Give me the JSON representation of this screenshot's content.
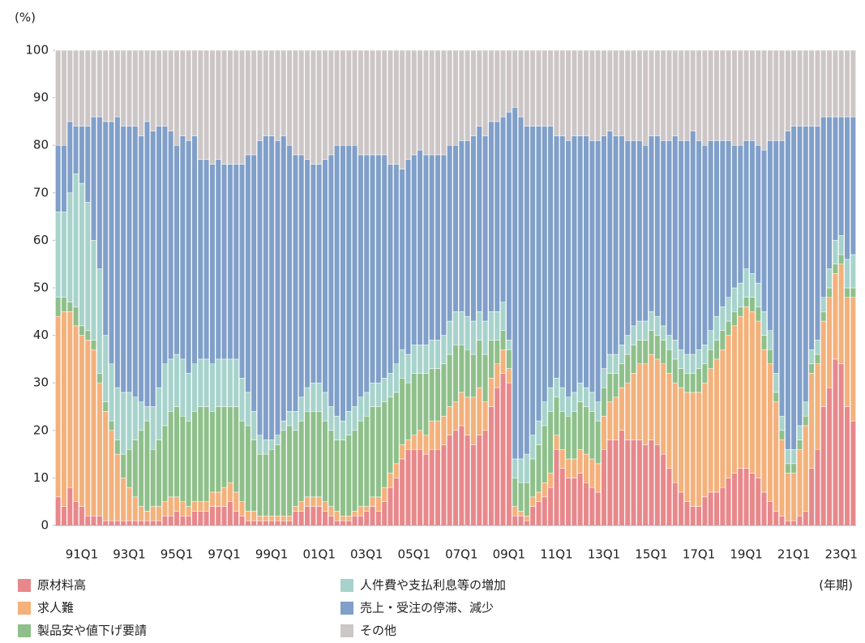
{
  "chart_data": {
    "type": "stacked_bar",
    "y_label": "(%)",
    "x_label": "(年期)",
    "categories": [
      null,
      null,
      null,
      null,
      "91Q1",
      null,
      null,
      null,
      null,
      null,
      null,
      null,
      "93Q1",
      null,
      null,
      null,
      null,
      null,
      null,
      null,
      "95Q1",
      null,
      null,
      null,
      null,
      null,
      null,
      null,
      "97Q1",
      null,
      null,
      null,
      null,
      null,
      null,
      null,
      "99Q1",
      null,
      null,
      null,
      null,
      null,
      null,
      null,
      "01Q1",
      null,
      null,
      null,
      null,
      null,
      null,
      null,
      "03Q1",
      null,
      null,
      null,
      null,
      null,
      null,
      null,
      "05Q1",
      null,
      null,
      null,
      null,
      null,
      null,
      null,
      "07Q1",
      null,
      null,
      null,
      null,
      null,
      null,
      null,
      "09Q1",
      null,
      null,
      null,
      null,
      null,
      null,
      null,
      "11Q1",
      null,
      null,
      null,
      null,
      null,
      null,
      null,
      "13Q1",
      null,
      null,
      null,
      null,
      null,
      null,
      null,
      "15Q1",
      null,
      null,
      null,
      null,
      null,
      null,
      null,
      "17Q1",
      null,
      null,
      null,
      null,
      null,
      null,
      null,
      "19Q1",
      null,
      null,
      null,
      null,
      null,
      null,
      null,
      "21Q1",
      null,
      null,
      null,
      null,
      null,
      null,
      null,
      "23Q1",
      null,
      null
    ],
    "series": [
      {
        "name": "原材料高",
        "color": "#e8888b",
        "values": [
          6,
          4,
          8,
          5,
          4,
          2,
          2,
          2,
          1,
          1,
          1,
          1,
          1,
          1,
          1,
          1,
          1,
          1,
          2,
          2,
          3,
          2,
          2,
          3,
          3,
          3,
          4,
          4,
          4,
          5,
          3,
          2,
          1,
          1,
          1,
          1,
          1,
          1,
          1,
          1,
          3,
          3,
          4,
          4,
          4,
          3,
          2,
          1,
          1,
          1,
          2,
          2,
          3,
          4,
          3,
          5,
          8,
          10,
          14,
          16,
          16,
          16,
          15,
          16,
          16,
          17,
          19,
          20,
          21,
          19,
          17,
          19,
          20,
          25,
          29,
          32,
          30,
          2,
          2,
          1,
          4,
          5,
          6,
          8,
          16,
          12,
          10,
          10,
          11,
          9,
          8,
          7,
          16,
          18,
          18,
          20,
          18,
          18,
          18,
          17,
          18,
          17,
          15,
          12,
          9,
          7,
          5,
          4,
          4,
          6,
          7,
          7,
          8,
          10,
          11,
          12,
          12,
          11,
          10,
          7,
          5,
          3,
          2,
          1,
          1,
          2,
          3,
          12,
          16,
          25,
          29,
          35,
          34,
          25,
          22
        ]
      },
      {
        "name": "求人難",
        "color": "#f4b17b",
        "values": [
          38,
          41,
          37,
          37,
          36,
          37,
          35,
          28,
          23,
          19,
          14,
          9,
          7,
          5,
          3,
          2,
          3,
          3,
          3,
          4,
          3,
          3,
          2,
          2,
          2,
          2,
          3,
          3,
          4,
          4,
          4,
          3,
          2,
          2,
          1,
          1,
          1,
          1,
          1,
          1,
          1,
          2,
          2,
          2,
          2,
          2,
          2,
          2,
          1,
          1,
          1,
          2,
          1,
          2,
          3,
          3,
          3,
          3,
          3,
          2,
          3,
          4,
          4,
          6,
          6,
          6,
          6,
          6,
          7,
          8,
          10,
          10,
          6,
          6,
          5,
          5,
          3,
          2,
          1,
          1,
          2,
          2,
          3,
          3,
          3,
          4,
          4,
          4,
          5,
          6,
          6,
          6,
          7,
          8,
          9,
          9,
          12,
          14,
          16,
          17,
          18,
          18,
          19,
          20,
          21,
          22,
          23,
          24,
          24,
          24,
          26,
          28,
          29,
          30,
          31,
          32,
          34,
          34,
          33,
          30,
          29,
          23,
          16,
          10,
          10,
          14,
          18,
          20,
          18,
          18,
          19,
          18,
          21,
          23,
          26
        ]
      },
      {
        "name": "製品安や値下げ要請",
        "color": "#8fc08b",
        "values": [
          4,
          3,
          2,
          4,
          2,
          2,
          2,
          2,
          2,
          2,
          3,
          5,
          8,
          12,
          16,
          19,
          12,
          14,
          16,
          18,
          19,
          18,
          18,
          19,
          20,
          20,
          17,
          18,
          17,
          16,
          18,
          17,
          18,
          15,
          13,
          13,
          14,
          15,
          18,
          19,
          16,
          17,
          18,
          18,
          18,
          17,
          16,
          15,
          16,
          17,
          17,
          18,
          19,
          19,
          19,
          18,
          16,
          15,
          14,
          12,
          13,
          12,
          13,
          11,
          11,
          11,
          11,
          12,
          10,
          10,
          9,
          10,
          10,
          8,
          5,
          4,
          4,
          6,
          6,
          7,
          8,
          10,
          12,
          13,
          8,
          8,
          9,
          10,
          10,
          10,
          10,
          9,
          6,
          6,
          5,
          5,
          6,
          6,
          5,
          5,
          5,
          5,
          5,
          5,
          5,
          4,
          4,
          4,
          5,
          4,
          4,
          4,
          4,
          3,
          3,
          2,
          2,
          3,
          3,
          3,
          3,
          2,
          2,
          2,
          2,
          2,
          2,
          2,
          2,
          2,
          2,
          2,
          2,
          2,
          2
        ]
      },
      {
        "name": "人件費や支払利息等の増加",
        "color": "#a7d3cc",
        "values": [
          18,
          18,
          23,
          28,
          30,
          27,
          21,
          22,
          14,
          12,
          11,
          13,
          12,
          9,
          6,
          3,
          9,
          11,
          13,
          11,
          11,
          12,
          10,
          10,
          10,
          10,
          10,
          10,
          10,
          10,
          10,
          9,
          7,
          6,
          4,
          3,
          2,
          2,
          2,
          3,
          4,
          5,
          5,
          6,
          6,
          6,
          5,
          5,
          4,
          5,
          5,
          5,
          5,
          5,
          5,
          5,
          5,
          6,
          6,
          6,
          6,
          6,
          6,
          6,
          6,
          6,
          7,
          7,
          7,
          7,
          7,
          6,
          7,
          6,
          6,
          6,
          2,
          4,
          5,
          6,
          5,
          5,
          5,
          5,
          4,
          5,
          4,
          4,
          4,
          4,
          4,
          4,
          4,
          4,
          4,
          4,
          4,
          4,
          4,
          4,
          4,
          4,
          3,
          3,
          4,
          4,
          4,
          4,
          4,
          4,
          4,
          5,
          5,
          5,
          5,
          5,
          6,
          5,
          5,
          5,
          4,
          4,
          3,
          3,
          3,
          3,
          3,
          3,
          3,
          3,
          4,
          5,
          4,
          6,
          7
        ]
      },
      {
        "name": "売上・受注の停滞、減少",
        "color": "#809fc9",
        "values": [
          14,
          14,
          15,
          10,
          12,
          16,
          26,
          32,
          45,
          51,
          57,
          56,
          56,
          57,
          56,
          60,
          58,
          55,
          50,
          48,
          44,
          47,
          49,
          48,
          42,
          42,
          42,
          42,
          41,
          41,
          41,
          45,
          50,
          54,
          62,
          64,
          64,
          62,
          60,
          56,
          54,
          51,
          48,
          46,
          46,
          49,
          53,
          57,
          58,
          56,
          55,
          51,
          50,
          48,
          48,
          47,
          44,
          42,
          38,
          41,
          40,
          41,
          40,
          39,
          39,
          38,
          37,
          35,
          36,
          37,
          39,
          39,
          39,
          40,
          40,
          39,
          48,
          74,
          72,
          69,
          65,
          62,
          58,
          55,
          51,
          53,
          54,
          54,
          52,
          53,
          53,
          55,
          49,
          47,
          46,
          44,
          41,
          39,
          38,
          37,
          37,
          38,
          39,
          41,
          43,
          44,
          45,
          47,
          44,
          42,
          40,
          37,
          35,
          33,
          30,
          29,
          27,
          28,
          29,
          34,
          40,
          49,
          58,
          67,
          68,
          63,
          58,
          47,
          45,
          38,
          32,
          26,
          25,
          30,
          29
        ]
      },
      {
        "name": "その他",
        "color": "#cdc6c6",
        "values": [
          20,
          20,
          15,
          16,
          16,
          16,
          14,
          14,
          15,
          15,
          14,
          16,
          16,
          16,
          18,
          15,
          17,
          16,
          16,
          17,
          20,
          18,
          19,
          18,
          23,
          23,
          24,
          23,
          24,
          24,
          24,
          24,
          22,
          22,
          19,
          18,
          18,
          19,
          18,
          20,
          22,
          22,
          23,
          24,
          24,
          23,
          22,
          20,
          20,
          20,
          20,
          22,
          22,
          22,
          22,
          22,
          24,
          24,
          25,
          23,
          22,
          21,
          22,
          22,
          22,
          22,
          20,
          20,
          19,
          19,
          18,
          16,
          18,
          15,
          15,
          14,
          13,
          12,
          14,
          16,
          16,
          16,
          16,
          16,
          18,
          18,
          19,
          18,
          18,
          18,
          19,
          19,
          18,
          17,
          18,
          18,
          19,
          19,
          19,
          20,
          18,
          18,
          19,
          19,
          18,
          19,
          19,
          17,
          19,
          20,
          19,
          19,
          19,
          19,
          20,
          20,
          19,
          19,
          20,
          21,
          19,
          19,
          19,
          17,
          16,
          16,
          16,
          16,
          16,
          14,
          14,
          14,
          14,
          14,
          14
        ]
      }
    ],
    "ylim": [
      0,
      100
    ],
    "yticks": [
      0,
      10,
      20,
      30,
      40,
      50,
      60,
      70,
      80,
      90,
      100
    ]
  }
}
